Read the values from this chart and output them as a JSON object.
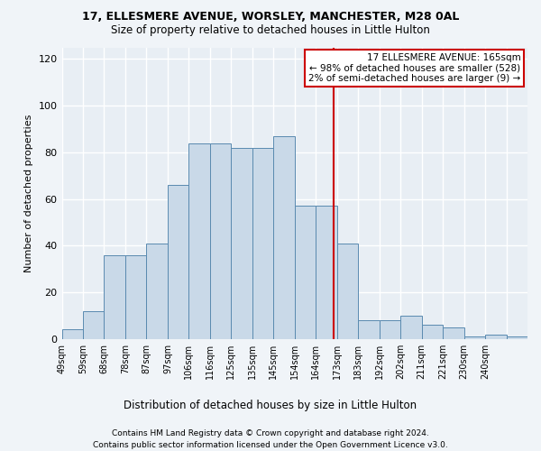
{
  "title1": "17, ELLESMERE AVENUE, WORSLEY, MANCHESTER, M28 0AL",
  "title2": "Size of property relative to detached houses in Little Hulton",
  "xlabel": "Distribution of detached houses by size in Little Hulton",
  "ylabel": "Number of detached properties",
  "footnote1": "Contains HM Land Registry data © Crown copyright and database right 2024.",
  "footnote2": "Contains public sector information licensed under the Open Government Licence v3.0.",
  "bar_color": "#c9d9e8",
  "bar_edge_color": "#5a8ab0",
  "vline_x": 164.5,
  "vline_color": "#cc0000",
  "annotation_text": "17 ELLESMERE AVENUE: 165sqm\n← 98% of detached houses are smaller (528)\n2% of semi-detached houses are larger (9) →",
  "annotation_box_color": "#cc0000",
  "annotation_bg": "#ffffff",
  "bin_edges": [
    49,
    58,
    67,
    76,
    85,
    94,
    103,
    112,
    121,
    130,
    139,
    148,
    157,
    166,
    175,
    184,
    193,
    202,
    211,
    220,
    229,
    238,
    247
  ],
  "counts": [
    4,
    12,
    36,
    36,
    41,
    66,
    84,
    84,
    82,
    82,
    87,
    57,
    57,
    41,
    8,
    8,
    10,
    6,
    5,
    1,
    2,
    1
  ],
  "xlim": [
    49,
    247
  ],
  "ylim": [
    0,
    125
  ],
  "yticks": [
    0,
    20,
    40,
    60,
    80,
    100,
    120
  ],
  "xtick_labels": [
    "49sqm",
    "59sqm",
    "68sqm",
    "78sqm",
    "87sqm",
    "97sqm",
    "106sqm",
    "116sqm",
    "125sqm",
    "135sqm",
    "145sqm",
    "154sqm",
    "164sqm",
    "173sqm",
    "183sqm",
    "192sqm",
    "202sqm",
    "211sqm",
    "221sqm",
    "230sqm",
    "240sqm",
    ""
  ],
  "xtick_positions": [
    49,
    58,
    67,
    76,
    85,
    94,
    103,
    112,
    121,
    130,
    139,
    148,
    157,
    166,
    175,
    184,
    193,
    202,
    211,
    220,
    229,
    238
  ],
  "bg_color": "#e8eef4",
  "grid_color": "#ffffff",
  "fig_bg_color": "#f0f4f8"
}
